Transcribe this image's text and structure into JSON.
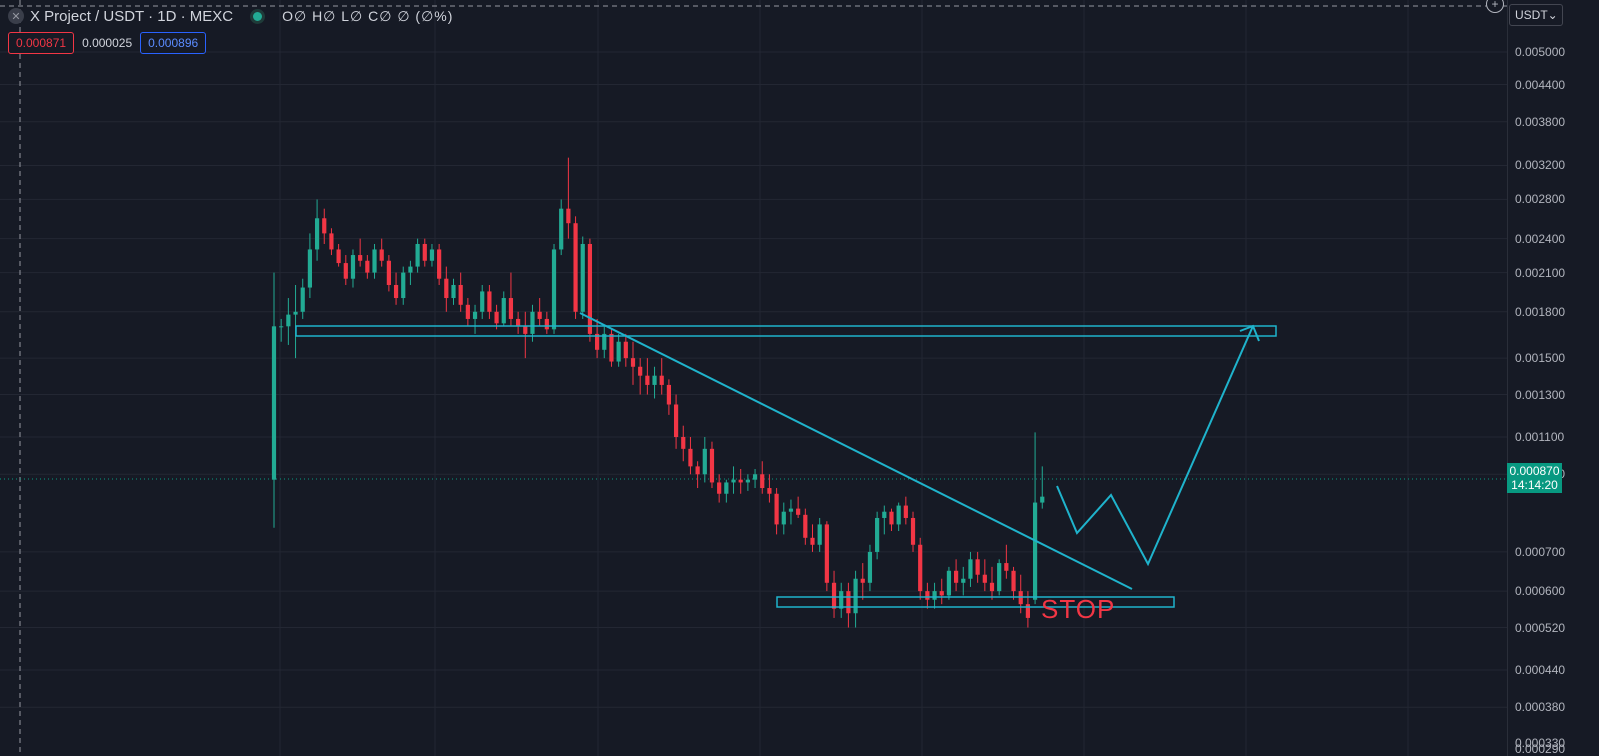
{
  "header": {
    "symbol_icon": "x-icon",
    "title": "X Project / USDT · 1D · MEXC",
    "ohlc": "O∅ H∅ L∅ C∅ ∅ (∅%)",
    "sell_price": "0.000871",
    "spread": "0.000025",
    "buy_price": "0.000896"
  },
  "axis": {
    "currency": "USDT",
    "ticks": [
      "0.005000",
      "0.004400",
      "0.003800",
      "0.003200",
      "0.002800",
      "0.002400",
      "0.002100",
      "0.001800",
      "0.001500",
      "0.001300",
      "0.001100",
      "0.000950",
      "0.000700",
      "0.000600",
      "0.000520",
      "0.000440",
      "0.000380",
      "0.000330",
      "0.000290"
    ],
    "last_price": "0.000870",
    "countdown": "14:14:20"
  },
  "annotation": {
    "stop_label": "STOP"
  },
  "colors": {
    "up": "#22ab94",
    "down": "#f23645",
    "drawing": "#1fb3cc",
    "background": "#161a25"
  },
  "chart_data": {
    "type": "candlestick",
    "scale": "log",
    "ylim": [
      0.00029,
      0.005
    ],
    "candles": [
      [
        0.00093,
        0.0021,
        0.00077,
        0.0017
      ],
      [
        0.0017,
        0.00175,
        0.0016,
        0.0017
      ],
      [
        0.0017,
        0.0019,
        0.00158,
        0.00178
      ],
      [
        0.00178,
        0.002,
        0.0015,
        0.0018
      ],
      [
        0.0018,
        0.00205,
        0.00175,
        0.00198
      ],
      [
        0.00198,
        0.00245,
        0.0019,
        0.0023
      ],
      [
        0.0023,
        0.0028,
        0.0022,
        0.0026
      ],
      [
        0.0026,
        0.0027,
        0.00235,
        0.00245
      ],
      [
        0.00245,
        0.0025,
        0.00225,
        0.0023
      ],
      [
        0.0023,
        0.00235,
        0.00215,
        0.00218
      ],
      [
        0.00218,
        0.00225,
        0.002,
        0.00205
      ],
      [
        0.00205,
        0.0023,
        0.00198,
        0.00225
      ],
      [
        0.00225,
        0.0024,
        0.00215,
        0.0022
      ],
      [
        0.0022,
        0.00225,
        0.00205,
        0.0021
      ],
      [
        0.0021,
        0.00235,
        0.00205,
        0.0023
      ],
      [
        0.0023,
        0.0024,
        0.00215,
        0.0022
      ],
      [
        0.0022,
        0.00225,
        0.00195,
        0.002
      ],
      [
        0.002,
        0.0021,
        0.00185,
        0.0019
      ],
      [
        0.0019,
        0.00215,
        0.00185,
        0.0021
      ],
      [
        0.0021,
        0.0022,
        0.002,
        0.00215
      ],
      [
        0.00215,
        0.0024,
        0.0021,
        0.00235
      ],
      [
        0.00235,
        0.0024,
        0.00215,
        0.0022
      ],
      [
        0.0022,
        0.00235,
        0.00215,
        0.0023
      ],
      [
        0.0023,
        0.00235,
        0.002,
        0.00205
      ],
      [
        0.00205,
        0.00215,
        0.0018,
        0.0019
      ],
      [
        0.0019,
        0.00205,
        0.00185,
        0.002
      ],
      [
        0.002,
        0.0021,
        0.0018,
        0.00185
      ],
      [
        0.00185,
        0.0019,
        0.0017,
        0.00175
      ],
      [
        0.00175,
        0.00185,
        0.00165,
        0.0018
      ],
      [
        0.0018,
        0.002,
        0.00175,
        0.00195
      ],
      [
        0.00195,
        0.002,
        0.00175,
        0.0018
      ],
      [
        0.0018,
        0.00185,
        0.00168,
        0.00172
      ],
      [
        0.00172,
        0.00195,
        0.0017,
        0.0019
      ],
      [
        0.0019,
        0.0021,
        0.0017,
        0.00175
      ],
      [
        0.00175,
        0.0018,
        0.00165,
        0.0017
      ],
      [
        0.0017,
        0.0018,
        0.0015,
        0.00165
      ],
      [
        0.00165,
        0.00185,
        0.0016,
        0.0018
      ],
      [
        0.0018,
        0.0019,
        0.0017,
        0.00175
      ],
      [
        0.00175,
        0.0018,
        0.00165,
        0.00168
      ],
      [
        0.00168,
        0.00235,
        0.00165,
        0.0023
      ],
      [
        0.0023,
        0.0028,
        0.00225,
        0.0027
      ],
      [
        0.0027,
        0.0033,
        0.0024,
        0.00255
      ],
      [
        0.00255,
        0.00262,
        0.00175,
        0.0018
      ],
      [
        0.0018,
        0.00242,
        0.00175,
        0.00235
      ],
      [
        0.00235,
        0.0024,
        0.0016,
        0.00165
      ],
      [
        0.00165,
        0.00175,
        0.0015,
        0.00155
      ],
      [
        0.00155,
        0.0017,
        0.0015,
        0.00165
      ],
      [
        0.00165,
        0.00168,
        0.00145,
        0.00148
      ],
      [
        0.00148,
        0.00165,
        0.00145,
        0.0016
      ],
      [
        0.0016,
        0.00165,
        0.00145,
        0.0015
      ],
      [
        0.0015,
        0.0016,
        0.00135,
        0.00145
      ],
      [
        0.00145,
        0.0015,
        0.0013,
        0.0014
      ],
      [
        0.0014,
        0.0015,
        0.0013,
        0.00135
      ],
      [
        0.00135,
        0.00145,
        0.00128,
        0.0014
      ],
      [
        0.0014,
        0.0015,
        0.0013,
        0.00135
      ],
      [
        0.00135,
        0.00138,
        0.0012,
        0.00125
      ],
      [
        0.00125,
        0.0013,
        0.00105,
        0.0011
      ],
      [
        0.0011,
        0.00115,
        0.001,
        0.00105
      ],
      [
        0.00105,
        0.0011,
        0.00095,
        0.00098
      ],
      [
        0.00098,
        0.001,
        0.0009,
        0.00095
      ],
      [
        0.00095,
        0.0011,
        0.00092,
        0.00105
      ],
      [
        0.00105,
        0.00108,
        0.0009,
        0.00092
      ],
      [
        0.00092,
        0.00095,
        0.00085,
        0.00088
      ],
      [
        0.00088,
        0.00093,
        0.00085,
        0.00092
      ],
      [
        0.00092,
        0.00098,
        0.00088,
        0.00093
      ],
      [
        0.00093,
        0.00097,
        0.00088,
        0.00092
      ],
      [
        0.00092,
        0.00095,
        0.00089,
        0.00093
      ],
      [
        0.00093,
        0.00097,
        0.0009,
        0.00095
      ],
      [
        0.00095,
        0.001,
        0.00088,
        0.0009
      ],
      [
        0.0009,
        0.00095,
        0.00085,
        0.00088
      ],
      [
        0.00088,
        0.0009,
        0.00075,
        0.00078
      ],
      [
        0.00078,
        0.00085,
        0.00075,
        0.00082
      ],
      [
        0.00082,
        0.00086,
        0.00078,
        0.00083
      ],
      [
        0.00083,
        0.00087,
        0.0008,
        0.00081
      ],
      [
        0.00081,
        0.00083,
        0.00072,
        0.00074
      ],
      [
        0.00074,
        0.00078,
        0.0007,
        0.00072
      ],
      [
        0.00072,
        0.0008,
        0.0007,
        0.00078
      ],
      [
        0.00078,
        0.00079,
        0.0006,
        0.00062
      ],
      [
        0.00062,
        0.00065,
        0.00054,
        0.00056
      ],
      [
        0.00056,
        0.00062,
        0.00054,
        0.0006
      ],
      [
        0.0006,
        0.00062,
        0.00052,
        0.00055
      ],
      [
        0.00055,
        0.00065,
        0.00052,
        0.00063
      ],
      [
        0.00063,
        0.00067,
        0.00058,
        0.00062
      ],
      [
        0.00062,
        0.00072,
        0.0006,
        0.0007
      ],
      [
        0.0007,
        0.00082,
        0.00068,
        0.0008
      ],
      [
        0.0008,
        0.00084,
        0.00075,
        0.00082
      ],
      [
        0.00082,
        0.00083,
        0.00076,
        0.00078
      ],
      [
        0.00078,
        0.00085,
        0.00076,
        0.00084
      ],
      [
        0.00084,
        0.00087,
        0.00078,
        0.0008
      ],
      [
        0.0008,
        0.00082,
        0.0007,
        0.00072
      ],
      [
        0.00072,
        0.00074,
        0.00058,
        0.0006
      ],
      [
        0.0006,
        0.00062,
        0.00056,
        0.00058
      ],
      [
        0.00058,
        0.00062,
        0.00056,
        0.0006
      ],
      [
        0.0006,
        0.00063,
        0.00057,
        0.00059
      ],
      [
        0.00059,
        0.00066,
        0.00058,
        0.00065
      ],
      [
        0.00065,
        0.00068,
        0.0006,
        0.00062
      ],
      [
        0.00062,
        0.00066,
        0.00059,
        0.00063
      ],
      [
        0.00063,
        0.0007,
        0.00061,
        0.00068
      ],
      [
        0.00068,
        0.0007,
        0.00062,
        0.00064
      ],
      [
        0.00064,
        0.00068,
        0.0006,
        0.00062
      ],
      [
        0.00062,
        0.00066,
        0.00058,
        0.0006
      ],
      [
        0.0006,
        0.00068,
        0.00059,
        0.00067
      ],
      [
        0.00067,
        0.00072,
        0.00063,
        0.00065
      ],
      [
        0.00065,
        0.00066,
        0.00058,
        0.0006
      ],
      [
        0.0006,
        0.00064,
        0.00055,
        0.00057
      ],
      [
        0.00057,
        0.0006,
        0.00052,
        0.00054
      ],
      [
        0.00058,
        0.00112,
        0.00057,
        0.00085
      ],
      [
        0.00085,
        0.00098,
        0.00083,
        0.00087
      ]
    ]
  }
}
